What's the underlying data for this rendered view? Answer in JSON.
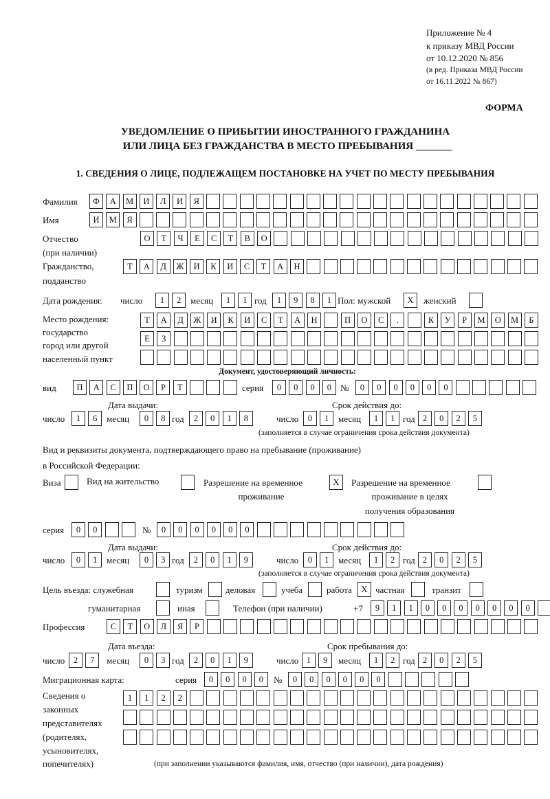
{
  "header": {
    "appendix": "Приложение № 4",
    "order": "к приказу МВД России",
    "date": "от 10.12.2020 № 856",
    "edit1": "(в ред. Приказа МВД России",
    "edit2": "от 16.11.2022 № 867)"
  },
  "form_label": "ФОРМА",
  "title": {
    "line1": "УВЕДОМЛЕНИЕ О ПРИБЫТИИ ИНОСТРАННОГО ГРАЖДАНИНА",
    "line2": "ИЛИ ЛИЦА БЕЗ ГРАЖДАНСТВА В МЕСТО ПРЕБЫВАНИЯ _______"
  },
  "section1": "1. СВЕДЕНИЯ О ЛИЦЕ, ПОДЛЕЖАЩЕМ ПОСТАНОВКЕ НА УЧЕТ ПО МЕСТУ ПРЕБЫВАНИЯ",
  "surname": {
    "label": "Фамилия",
    "value": "ФАМИЛИЯ"
  },
  "name": {
    "label": "Имя",
    "value": "ИМЯ"
  },
  "patronymic": {
    "label1": "Отчество",
    "label2": "(при наличии)",
    "value": "ОТЧЕСТВО"
  },
  "citizenship": {
    "label1": "Гражданство,",
    "label2": "подданство",
    "value": "ТАДЖИКИСТАН"
  },
  "birth": {
    "label": "Дата рождения:",
    "day_label": "число",
    "day": "12",
    "month_label": "месяц",
    "month": "11",
    "year_label": "год",
    "year": "1981",
    "sex_label": "Пол: мужской",
    "male": "X",
    "female_label": "женский",
    "female": ""
  },
  "birthplace": {
    "label1": "Место рождения:",
    "label2": "государство",
    "label3": "город или другой",
    "label4": "населенный пункт",
    "row1": "ТАДЖИКИСТАН ПОС. КУРМОМБ",
    "row2": "ЕЗ",
    "row3": ""
  },
  "id_doc": {
    "heading": "Документ, удостоверяющий личность:",
    "kind_label": "вид",
    "kind": "ПАСПОРТ",
    "series_label": "серия",
    "series": "0000",
    "number_label": "№",
    "number": "000000",
    "issue_label": "Дата выдачи:",
    "valid_label": "Срок действия до:",
    "day_label": "число",
    "month_label": "месяц",
    "year_label": "год",
    "issue": {
      "day": "16",
      "month": "08",
      "year": "2018"
    },
    "valid": {
      "day": "01",
      "month": "11",
      "year": "2025"
    },
    "note": "(заполняется в случае ограничения срока действия документа)"
  },
  "stay_doc": {
    "line1": "Вид и реквизиты документа, подтверждающего право на пребывание (проживание)",
    "line2": "в Российской Федерации:",
    "visa_label": "Виза",
    "visa": "",
    "residence_label": "Вид на жительство",
    "residence": "",
    "trp_label1": "Разрешение на временное",
    "trp_label2": "проживание",
    "trp": "X",
    "trp_edu_label1": "Разрешение на временное",
    "trp_edu_label2": "проживание в целях",
    "trp_edu_label3": "получения образования",
    "trp_edu": "",
    "series_label": "серия",
    "series": "00",
    "number_label": "№",
    "number": "000000",
    "issue_label": "Дата выдачи:",
    "valid_label": "Срок действия до:",
    "day_label": "число",
    "month_label": "месяц",
    "year_label": "год",
    "issue": {
      "day": "01",
      "month": "03",
      "year": "2019"
    },
    "valid": {
      "day": "01",
      "month": "12",
      "year": "2025"
    },
    "note": "(заполняется в случае ограничения срока действия документа)"
  },
  "purpose": {
    "label": "Цель въезда: служебная",
    "official": "",
    "tourism_label": "туризм",
    "tourism": "",
    "business_label": "деловая",
    "business": "",
    "study_label": "учеба",
    "study": "",
    "work_label": "работа",
    "work": "X",
    "private_label": "частная",
    "private": "",
    "transit_label": "транзит",
    "transit": "",
    "humanitarian_label": "гуманитарная",
    "humanitarian": "",
    "other_label": "иная",
    "other": ""
  },
  "phone": {
    "label": "Телефон (при наличии)",
    "prefix": "+7",
    "value": "9110000000"
  },
  "profession": {
    "label": "Профессия",
    "value": "СТОЛЯР"
  },
  "entry": {
    "entry_label": "Дата въезда:",
    "stay_label": "Срок пребывания до:",
    "day_label": "число",
    "month_label": "месяц",
    "year_label": "год",
    "entry": {
      "day": "27",
      "month": "03",
      "year": "2019"
    },
    "stay": {
      "day": "19",
      "month": "12",
      "year": "2025"
    }
  },
  "migration_card": {
    "label": "Миграционная карта:",
    "series_label": "серия",
    "series": "0000",
    "number_label": "№",
    "number": "000000"
  },
  "representatives": {
    "label1": "Сведения о",
    "label2": "законных",
    "label3": "представителях",
    "label4": "(родителях,",
    "label5": "усыновителях,",
    "label6": "попечителях)",
    "row1": "1122",
    "row2": "",
    "row3": "",
    "note": "(при заполнении указываются фамилия, имя, отчество (при наличии), дата рождения)"
  }
}
